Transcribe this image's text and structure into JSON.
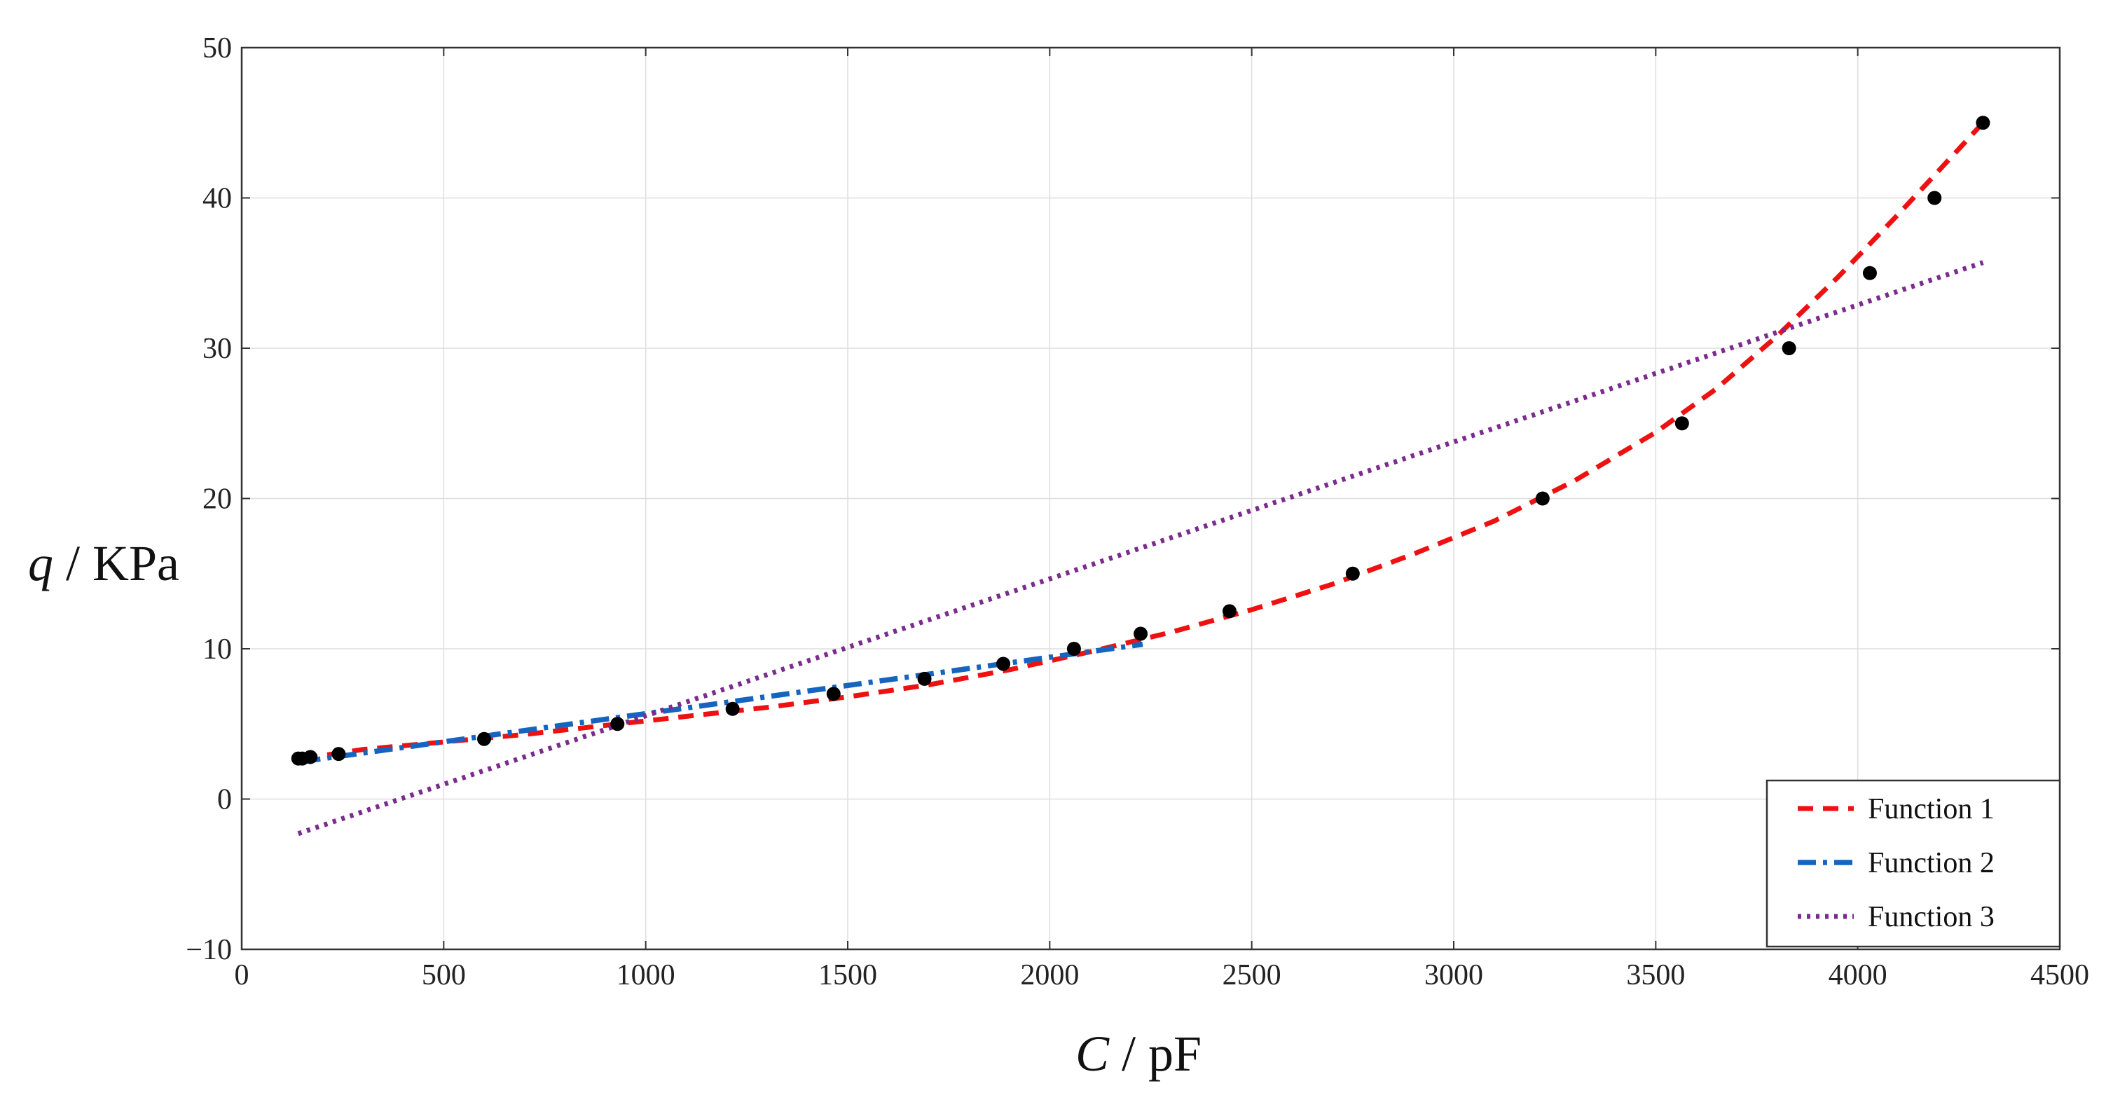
{
  "chart_data": {
    "type": "line",
    "xlabel": {
      "var": "C",
      "unit": " / pF"
    },
    "ylabel": {
      "var": "q",
      "unit": " / KPa"
    },
    "xlim": [
      0,
      4500
    ],
    "ylim": [
      -10,
      50
    ],
    "x_ticks": [
      0,
      500,
      1000,
      1500,
      2000,
      2500,
      3000,
      3500,
      4000,
      4500
    ],
    "x_tick_labels": [
      "0",
      "500",
      "1000",
      "1500",
      "2000",
      "2500",
      "3000",
      "3500",
      "4000",
      "4500"
    ],
    "y_ticks": [
      -10,
      0,
      10,
      20,
      30,
      40,
      50
    ],
    "y_tick_labels": [
      "−10",
      "0",
      "10",
      "20",
      "30",
      "40",
      "50"
    ],
    "grid": true,
    "legend_position": "bottom-right",
    "points": {
      "x": [
        140,
        150,
        170,
        240,
        600,
        930,
        1215,
        1465,
        1690,
        1885,
        2060,
        2225,
        2445,
        2750,
        3220,
        3565,
        3830,
        4030,
        4190,
        4310
      ],
      "y": [
        2.7,
        2.7,
        2.8,
        3.0,
        4.0,
        5.0,
        6.0,
        7.0,
        8.0,
        9.0,
        10.0,
        11.0,
        12.5,
        15.0,
        20.0,
        25.0,
        30.0,
        35.0,
        40.0,
        45.0
      ],
      "color": "#000000"
    },
    "series": [
      {
        "name": "Function 1",
        "style": "dashed",
        "color": "#ee1111",
        "x": [
          150,
          300,
          500,
          700,
          900,
          1100,
          1300,
          1500,
          1700,
          1900,
          2100,
          2300,
          2500,
          2700,
          2900,
          3100,
          3300,
          3500,
          3650,
          3800,
          3950,
          4100,
          4200,
          4310
        ],
        "y": [
          2.7,
          3.3,
          3.8,
          4.3,
          4.9,
          5.5,
          6.1,
          6.8,
          7.6,
          8.6,
          9.8,
          11.1,
          12.6,
          14.3,
          16.3,
          18.5,
          21.2,
          24.4,
          27.3,
          30.8,
          34.7,
          38.9,
          41.8,
          45.0
        ]
      },
      {
        "name": "Function 2",
        "style": "dashdot",
        "color": "#1565c0",
        "x": [
          150,
          2230
        ],
        "y": [
          2.5,
          10.3
        ]
      },
      {
        "name": "Function 3",
        "style": "dotted",
        "color": "#7b2a8e",
        "x": [
          140,
          4310
        ],
        "y": [
          -2.3,
          35.7
        ]
      }
    ]
  }
}
